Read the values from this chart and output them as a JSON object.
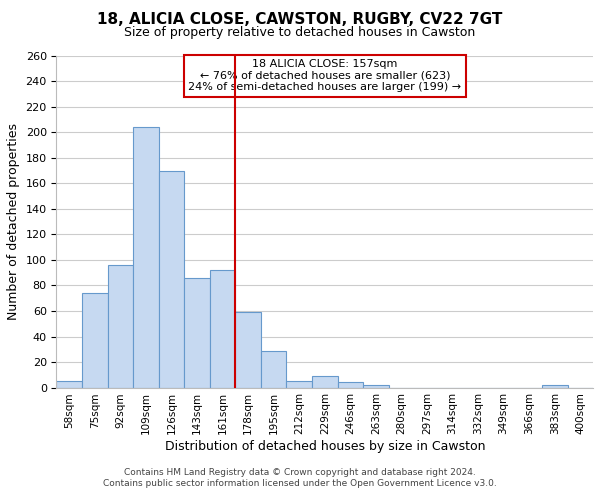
{
  "title": "18, ALICIA CLOSE, CAWSTON, RUGBY, CV22 7GT",
  "subtitle": "Size of property relative to detached houses in Cawston",
  "xlabel": "Distribution of detached houses by size in Cawston",
  "ylabel": "Number of detached properties",
  "bar_labels": [
    "58sqm",
    "75sqm",
    "92sqm",
    "109sqm",
    "126sqm",
    "143sqm",
    "161sqm",
    "178sqm",
    "195sqm",
    "212sqm",
    "229sqm",
    "246sqm",
    "263sqm",
    "280sqm",
    "297sqm",
    "314sqm",
    "332sqm",
    "349sqm",
    "366sqm",
    "383sqm",
    "400sqm"
  ],
  "bar_values": [
    5,
    74,
    96,
    204,
    170,
    86,
    92,
    59,
    29,
    5,
    9,
    4,
    2,
    0,
    0,
    0,
    0,
    0,
    0,
    2,
    0
  ],
  "bar_color": "#c6d9f1",
  "bar_edge_color": "#6699cc",
  "vline_x_index": 6,
  "vline_color": "#cc0000",
  "annotation_text": "18 ALICIA CLOSE: 157sqm\n← 76% of detached houses are smaller (623)\n24% of semi-detached houses are larger (199) →",
  "annotation_box_color": "#ffffff",
  "annotation_box_edge": "#cc0000",
  "ylim": [
    0,
    260
  ],
  "yticks": [
    0,
    20,
    40,
    60,
    80,
    100,
    120,
    140,
    160,
    180,
    200,
    220,
    240,
    260
  ],
  "grid_color": "#cccccc",
  "background_color": "#ffffff",
  "footer_line1": "Contains HM Land Registry data © Crown copyright and database right 2024.",
  "footer_line2": "Contains public sector information licensed under the Open Government Licence v3.0."
}
